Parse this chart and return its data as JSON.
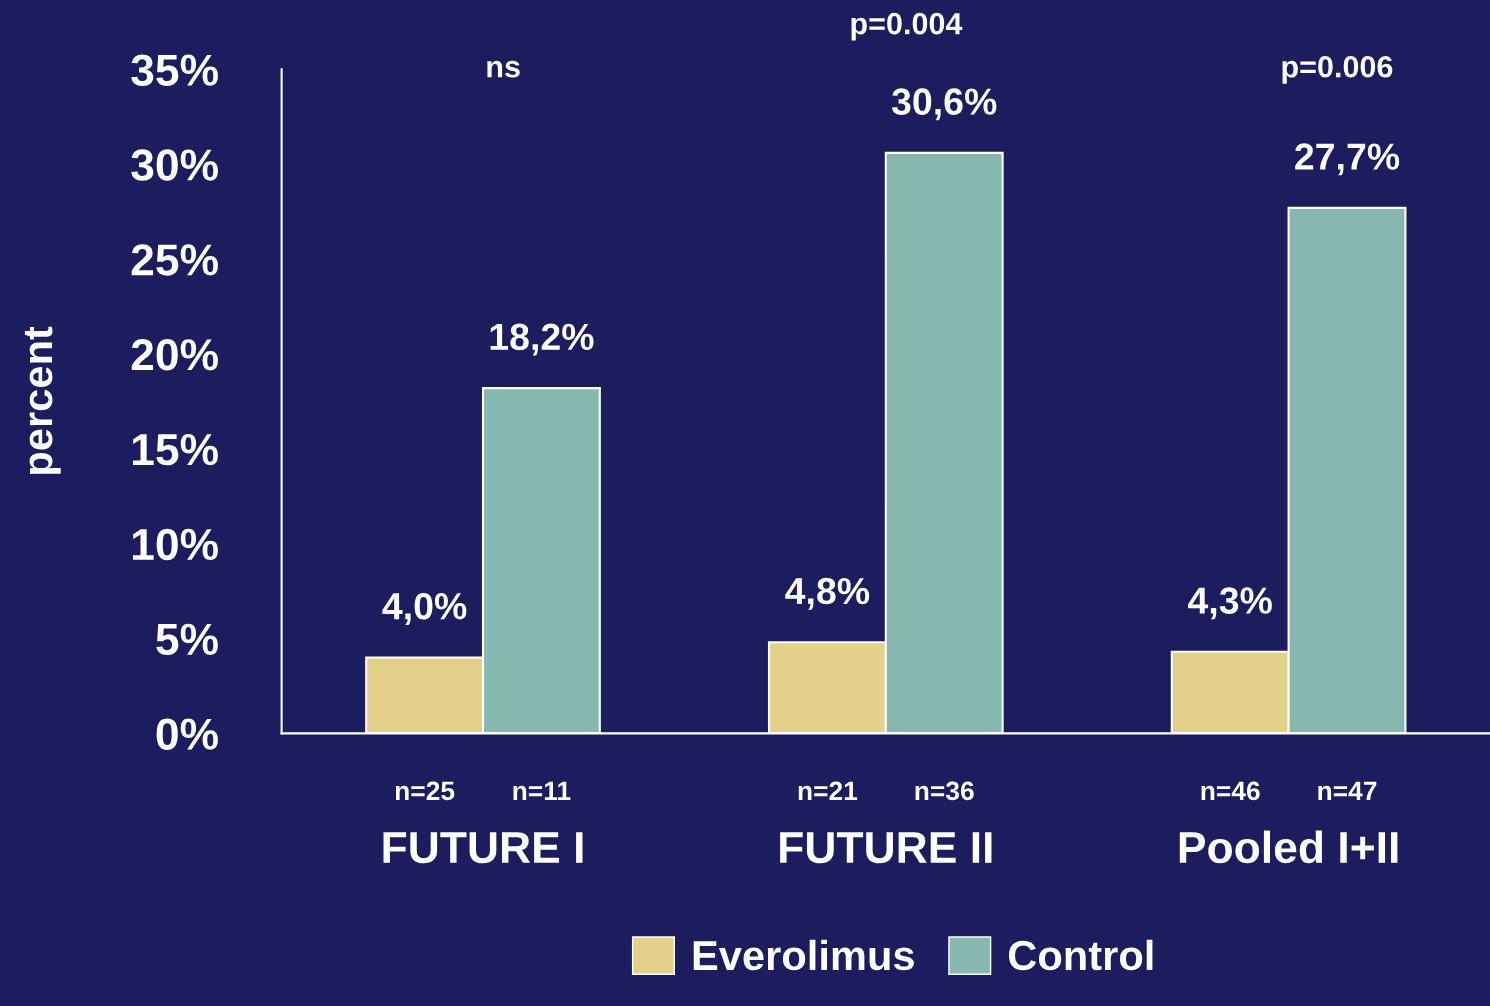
{
  "chart_data": {
    "type": "bar",
    "ylabel": "percent",
    "categories": [
      "FUTURE I",
      "FUTURE II",
      "Pooled I+II"
    ],
    "series": [
      {
        "name": "Everolimus",
        "color": "#e3d08a",
        "values": [
          4.0,
          4.8,
          4.3
        ],
        "value_labels": [
          "4,0%",
          "4,8%",
          "4,3%"
        ]
      },
      {
        "name": "Control",
        "color": "#86b8b0",
        "values": [
          18.2,
          30.6,
          27.7
        ],
        "value_labels": [
          "18,2%",
          "30,6%",
          "27,7%"
        ]
      }
    ],
    "ylim": [
      0,
      35
    ],
    "yticks": [
      {
        "value": 0,
        "label": "0%"
      },
      {
        "value": 5,
        "label": "5%"
      },
      {
        "value": 10,
        "label": "10%"
      },
      {
        "value": 15,
        "label": "15%"
      },
      {
        "value": 20,
        "label": "20%"
      },
      {
        "value": 25,
        "label": "25%"
      },
      {
        "value": 30,
        "label": "30%"
      },
      {
        "value": 35,
        "label": "35%"
      }
    ],
    "annotations": [
      "ns",
      "p=0.004",
      "p=0.006",
      "n=25",
      "n=11",
      "n=21",
      "n=36",
      "n=46",
      "n=47"
    ],
    "grid": false,
    "legend": "bottom"
  }
}
